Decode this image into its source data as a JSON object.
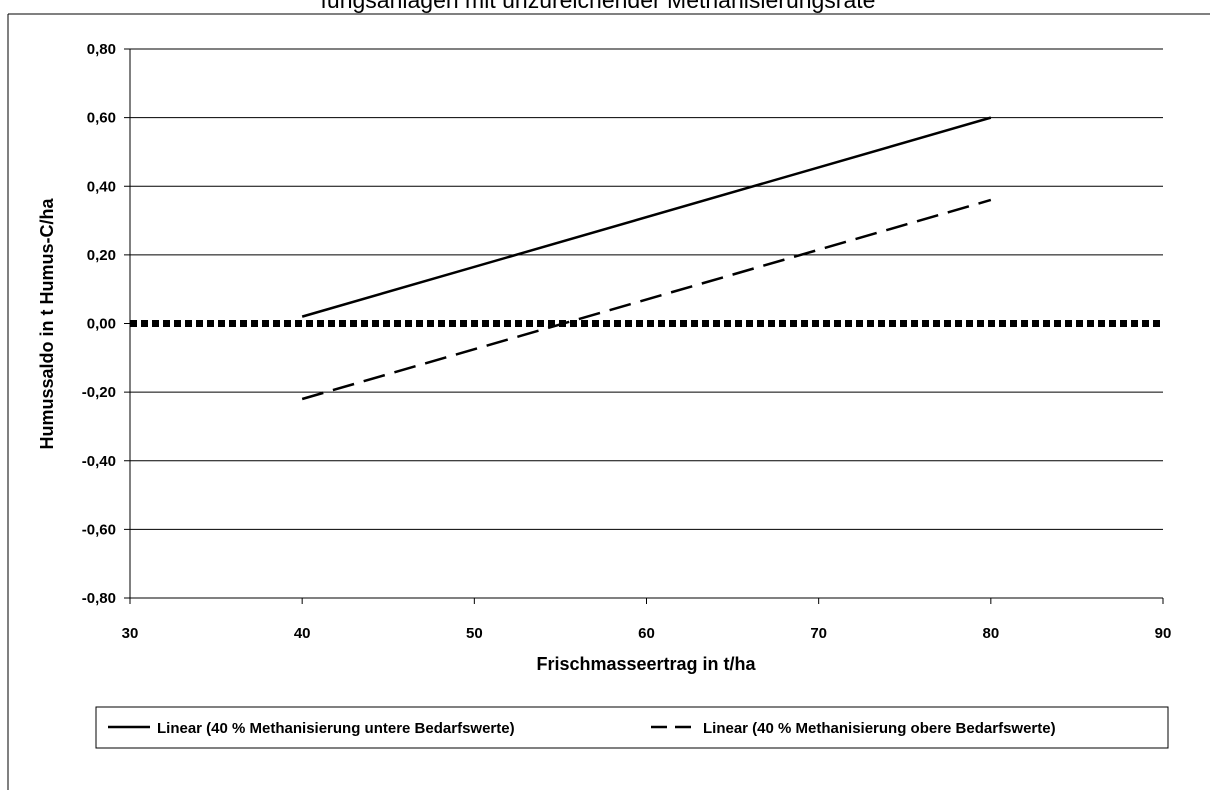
{
  "chart_data": {
    "type": "line",
    "title": "fungsanlagen mit unzureichender Methanisierungsrate",
    "xlabel": "Frischmasseertrag in t/ha",
    "ylabel": "Humussaldo in t Humus-C/ha",
    "xlim": [
      30,
      90
    ],
    "ylim": [
      -0.8,
      0.8
    ],
    "x_ticks": [
      30,
      40,
      50,
      60,
      70,
      80,
      90
    ],
    "x_tick_labels": [
      "30",
      "40",
      "50",
      "60",
      "70",
      "80",
      "90"
    ],
    "y_ticks": [
      0.8,
      0.6,
      0.4,
      0.2,
      0.0,
      -0.2,
      -0.4,
      -0.6,
      -0.8
    ],
    "y_tick_labels": [
      "0,80",
      "0,60",
      "0,40",
      "0,20",
      "0,00",
      "-0,20",
      "-0,40",
      "-0,60",
      "-0,80"
    ],
    "grid": "horizontal",
    "legend_position": "bottom",
    "series": [
      {
        "name": "Linear (40 % Methanisierung untere Bedarfswerte)",
        "style": "solid",
        "color": "#000000",
        "x": [
          40,
          80
        ],
        "y": [
          0.02,
          0.6
        ]
      },
      {
        "name": "Linear (40 % Methanisierung obere Bedarfswerte)",
        "style": "dashed",
        "color": "#000000",
        "x": [
          40,
          80
        ],
        "y": [
          -0.22,
          0.36
        ]
      }
    ],
    "reference_line": {
      "y": 0.0,
      "style": "dotted-thick",
      "color": "#000000"
    }
  }
}
